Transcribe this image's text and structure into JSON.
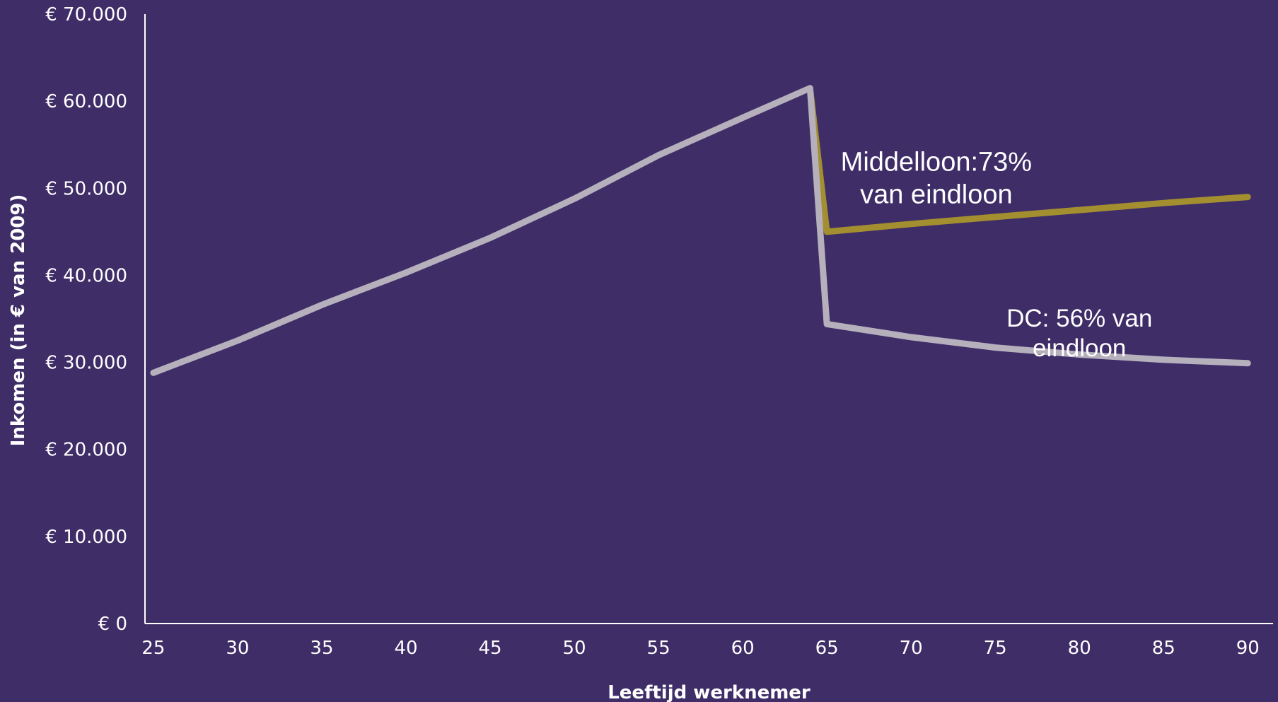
{
  "chart_data": {
    "type": "line",
    "xlabel": "Leeftijd werknemer",
    "ylabel": "Inkomen (in € van 2009)",
    "xlim": [
      24.5,
      91.5
    ],
    "ylim": [
      0,
      70000
    ],
    "x_ticks": [
      25,
      30,
      35,
      40,
      45,
      50,
      55,
      60,
      65,
      70,
      75,
      80,
      85,
      90
    ],
    "x_tick_labels": [
      "25",
      "30",
      "35",
      "40",
      "45",
      "50",
      "55",
      "60",
      "65",
      "70",
      "75",
      "80",
      "85",
      "90"
    ],
    "y_ticks": [
      0,
      10000,
      20000,
      30000,
      40000,
      50000,
      60000,
      70000
    ],
    "y_tick_labels": [
      "€ 0",
      "€ 10.000",
      "€ 20.000",
      "€ 30.000",
      "€ 40.000",
      "€ 50.000",
      "€ 60.000",
      "€ 70.000"
    ],
    "grid": false,
    "legend": "none",
    "series": [
      {
        "color": "#a38f30",
        "x": [
          64,
          65,
          70,
          75,
          80,
          85,
          90
        ],
        "y": [
          61500,
          45000,
          45900,
          46700,
          47500,
          48300,
          49000
        ]
      },
      {
        "color": "#b5b0bc",
        "x": [
          25,
          30,
          35,
          40,
          45,
          50,
          55,
          60,
          64,
          65,
          70,
          75,
          80,
          85,
          90
        ],
        "y": [
          28800,
          32500,
          36600,
          40300,
          44300,
          48800,
          53800,
          58100,
          61500,
          34400,
          32900,
          31700,
          30900,
          30300,
          29900
        ]
      }
    ],
    "annotations": [
      {
        "lines": [
          "Middelloon:73%",
          "van eindloon"
        ],
        "x": 71.5,
        "y": 52000
      },
      {
        "lines": [
          "DC: 56% van",
          "eindloon"
        ],
        "x": 80,
        "y": 34100
      }
    ]
  },
  "colors": {
    "background": "#3f2d68",
    "axis": "#ffffff",
    "text": "#ffffff"
  }
}
